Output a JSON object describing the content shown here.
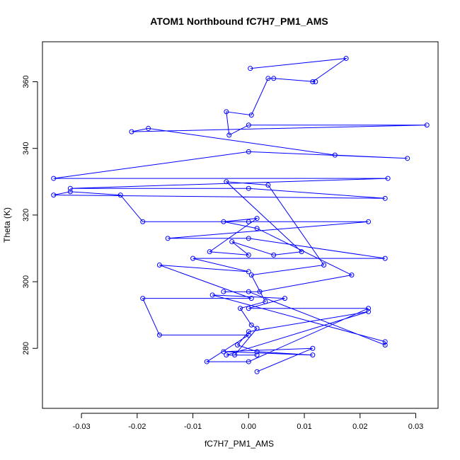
{
  "chart_data": {
    "type": "scatter",
    "title": "ATOM1 Northbound fC7H7_PM1_AMS",
    "xlabel": "fC7H7_PM1_AMS",
    "ylabel": "Theta (K)",
    "xlim": [
      -0.037,
      0.034
    ],
    "ylim": [
      262,
      372
    ],
    "x_ticks": [
      -0.03,
      -0.02,
      -0.01,
      0.0,
      0.01,
      0.02,
      0.03
    ],
    "x_tick_labels": [
      "-0.03",
      "-0.02",
      "-0.01",
      "0.00",
      "0.01",
      "0.02",
      "0.03"
    ],
    "y_ticks": [
      280,
      300,
      320,
      340,
      360
    ],
    "y_tick_labels": [
      "280",
      "300",
      "320",
      "340",
      "360"
    ],
    "grid": false,
    "legend": "none",
    "style": "points connected by lines",
    "color": "#0000ff",
    "series": [
      {
        "x": [
          0.0003,
          0.0175,
          0.0115,
          0.012,
          0.0045,
          0.0035,
          0.0005,
          -0.004,
          -0.0035,
          0.0,
          0.032,
          -0.021,
          -0.018,
          0.0155,
          0.0285,
          0.0,
          -0.035,
          0.025,
          -0.032,
          0.0,
          0.0245,
          -0.035,
          -0.032,
          -0.023,
          -0.019,
          0.0,
          0.0215,
          -0.0145,
          0.0,
          0.0245,
          -0.01,
          0.0,
          -0.016,
          0.0005,
          -0.019,
          -0.016,
          0.0,
          -0.0075,
          0.0,
          0.0215,
          0.0,
          0.0065,
          -0.0065,
          0.0245,
          0.0245,
          0.0,
          -0.0045,
          0.002,
          0.0185,
          0.0015,
          -0.0045,
          0.0015,
          -0.007,
          0.0,
          -0.003,
          0.0045,
          0.0095,
          -0.004,
          0.0035,
          0.0135,
          0.0005,
          0.003,
          -0.0015,
          0.0005,
          0.0015,
          -0.0025,
          0.0015,
          -0.004,
          0.0215,
          0.0,
          -0.002,
          0.0015,
          0.0115,
          -0.0045,
          0.0115,
          0.0015
        ],
        "y": [
          364,
          367,
          360,
          360,
          361,
          361,
          350,
          351,
          344,
          347,
          347,
          345,
          346,
          338,
          337,
          339,
          331,
          331,
          328,
          328,
          325,
          326,
          327,
          326,
          318,
          318,
          318,
          313,
          313,
          307,
          307,
          303,
          305,
          295,
          295,
          284,
          284,
          276,
          276,
          292,
          292,
          295,
          296,
          282,
          281,
          297,
          297,
          297,
          302,
          316,
          318,
          319,
          309,
          308,
          312,
          308,
          309,
          330,
          329,
          305,
          302,
          294,
          292,
          287,
          286,
          278,
          278,
          278,
          291,
          285,
          281,
          279,
          278,
          279,
          280,
          273
        ]
      }
    ]
  }
}
